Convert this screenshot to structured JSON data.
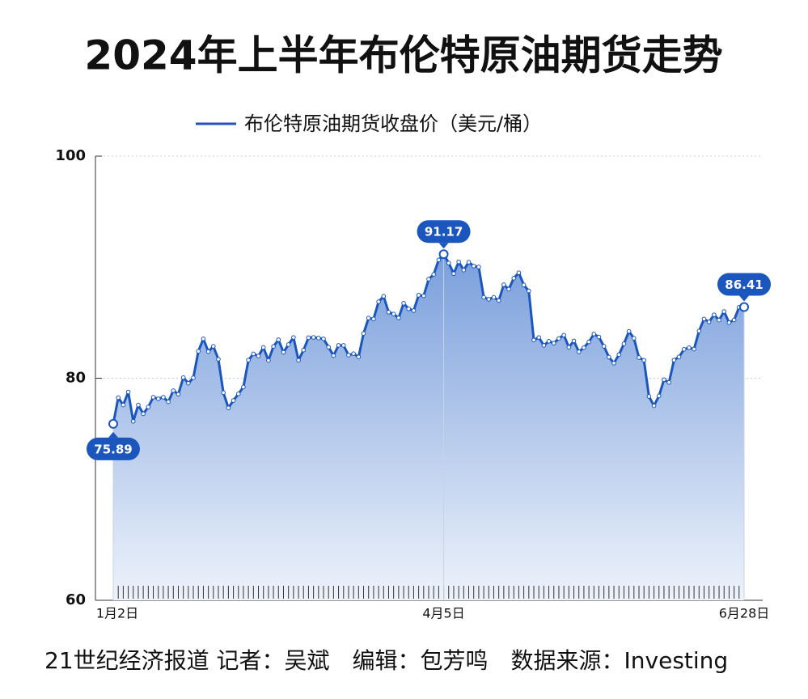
{
  "chart_data": {
    "type": "line",
    "title": "2024年上半年布伦特原油期货走势",
    "source": "21世纪经济报道 记者：吴斌　编辑：包芳鸣　数据来源：Investing",
    "categories": [
      "1月2日",
      null,
      null,
      null,
      null,
      null,
      null,
      null,
      null,
      null,
      null,
      null,
      null,
      null,
      null,
      null,
      null,
      null,
      null,
      null,
      null,
      null,
      null,
      null,
      null,
      null,
      null,
      null,
      null,
      null,
      null,
      null,
      null,
      null,
      null,
      null,
      null,
      null,
      null,
      null,
      null,
      null,
      null,
      null,
      null,
      null,
      null,
      null,
      null,
      null,
      null,
      null,
      null,
      null,
      null,
      null,
      null,
      null,
      null,
      null,
      null,
      null,
      null,
      null,
      null,
      null,
      "4月5日",
      null,
      null,
      null,
      null,
      null,
      null,
      null,
      null,
      null,
      null,
      null,
      null,
      null,
      null,
      null,
      null,
      null,
      null,
      null,
      null,
      null,
      null,
      null,
      null,
      null,
      null,
      null,
      null,
      null,
      null,
      null,
      null,
      null,
      null,
      null,
      null,
      null,
      null,
      null,
      null,
      null,
      null,
      null,
      null,
      null,
      null,
      null,
      null,
      null,
      null,
      null,
      null,
      null,
      null,
      null,
      null,
      null,
      null,
      null,
      "6月28日"
    ],
    "series": [
      {
        "name": "布伦特原油期货收盘价（美元/桶）",
        "color": "#1a56be",
        "values": [
          75.89,
          78.25,
          77.59,
          78.76,
          76.12,
          77.59,
          76.8,
          77.41,
          78.29,
          78.15,
          78.29,
          77.88,
          78.88,
          78.56,
          80.06,
          79.55,
          80.04,
          82.43,
          83.55,
          82.4,
          82.87,
          81.71,
          78.7,
          77.33,
          77.99,
          78.59,
          79.21,
          81.63,
          82.19,
          82.0,
          82.77,
          81.6,
          82.86,
          83.47,
          82.34,
          83.03,
          83.67,
          81.62,
          82.53,
          83.65,
          83.68,
          83.62,
          83.55,
          82.8,
          82.04,
          82.96,
          82.96,
          82.08,
          82.21,
          81.92,
          84.03,
          85.42,
          85.34,
          86.89,
          87.38,
          85.95,
          85.78,
          85.43,
          86.75,
          86.25,
          86.09,
          87.48,
          87.42,
          88.92,
          89.35,
          90.65,
          91.17,
          90.38,
          89.42,
          90.48,
          89.74,
          90.45,
          90.1,
          90.02,
          87.29,
          87.11,
          87.29,
          87.0,
          88.42,
          88.02,
          89.01,
          89.5,
          88.4,
          87.86,
          83.44,
          83.67,
          82.96,
          83.33,
          83.16,
          83.58,
          83.88,
          82.79,
          83.36,
          82.38,
          82.75,
          83.27,
          83.98,
          83.71,
          82.88,
          81.9,
          81.36,
          82.12,
          83.1,
          84.22,
          83.6,
          81.86,
          81.62,
          78.36,
          77.52,
          78.41,
          79.87,
          79.62,
          81.63,
          81.92,
          82.6,
          82.75,
          82.62,
          84.25,
          85.33,
          85.07,
          85.71,
          85.24,
          86.01,
          85.01,
          85.25,
          86.39,
          86.41
        ]
      }
    ],
    "ylim": [
      60,
      100
    ],
    "yticks": [
      60,
      80,
      100
    ],
    "grid": true
  }
}
